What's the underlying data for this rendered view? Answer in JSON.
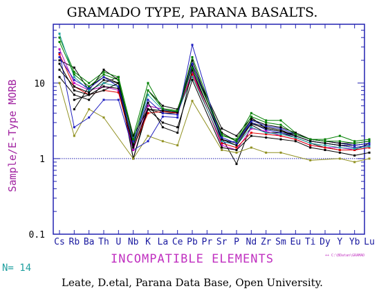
{
  "chart_data": {
    "type": "line",
    "title": "GRAMADO TYPE, PARANA BASALTS.",
    "ylabel": "Sample/E-Type MORB",
    "xlabel": "INCOMPATIBLE ELEMENTS",
    "yscale": "log",
    "ylim": [
      0.1,
      60
    ],
    "yticks": [
      "10",
      "1",
      "0.1"
    ],
    "reference_line": 1,
    "categories": [
      "Cs",
      "Rb",
      "Ba",
      "Th",
      "U",
      "Nb",
      "K",
      "La",
      "Ce",
      "Pb",
      "Pr",
      "Sr",
      "P",
      "Nd",
      "Zr",
      "Sm",
      "Eu",
      "Ti",
      "Dy",
      "Y",
      "Yb",
      "Lu"
    ],
    "series": [
      {
        "color": "#000000",
        "values": [
          20,
          16,
          8,
          15,
          11,
          1.5,
          8,
          5,
          4.5,
          17,
          null,
          2.5,
          2.0,
          3.5,
          2.5,
          2.3,
          2.1,
          1.8,
          1.7,
          1.6,
          1.5,
          1.6
        ]
      },
      {
        "color": "#000000",
        "values": [
          12,
          7,
          6,
          10,
          12,
          1.0,
          4.5,
          4.0,
          4.0,
          20,
          null,
          1.8,
          1.6,
          3.0,
          2.6,
          2.4,
          2.0,
          1.7,
          1.6,
          1.5,
          1.4,
          1.5
        ]
      },
      {
        "color": "#000000",
        "values": [
          null,
          4.5,
          9,
          12,
          10,
          1.0,
          5,
          4.5,
          4.0,
          14,
          null,
          1.9,
          0.85,
          2.8,
          2.2,
          2.2,
          1.9,
          1.6,
          1.4,
          1.3,
          1.3,
          1.6
        ]
      },
      {
        "color": "#008000",
        "values": [
          40,
          14,
          10,
          14,
          12,
          2.0,
          10,
          4.5,
          4.2,
          22,
          null,
          2.0,
          1.8,
          4.0,
          3.2,
          3.2,
          2.2,
          1.8,
          1.8,
          2.0,
          1.7,
          1.8
        ]
      },
      {
        "color": "#909020",
        "values": [
          10,
          2.0,
          4.5,
          3.5,
          null,
          1.0,
          2.0,
          1.7,
          1.5,
          5.8,
          null,
          1.3,
          1.2,
          1.4,
          1.2,
          1.2,
          null,
          0.95,
          null,
          1.0,
          0.9,
          1.0
        ]
      },
      {
        "color": "#2020c0",
        "values": [
          25,
          2.6,
          3.5,
          6,
          6,
          1.3,
          1.7,
          3.6,
          3.5,
          32,
          null,
          1.6,
          1.7,
          3.0,
          2.4,
          2.2,
          2.0,
          1.7,
          1.6,
          1.5,
          1.4,
          1.5
        ]
      },
      {
        "color": "#c000c0",
        "values": [
          28,
          10,
          8,
          9,
          8,
          1.3,
          5,
          4.5,
          4.0,
          14,
          null,
          1.5,
          1.3,
          2.5,
          2.3,
          2.0,
          1.8,
          1.5,
          1.4,
          1.4,
          1.3,
          1.4
        ]
      },
      {
        "color": "#e00000",
        "values": [
          24,
          9,
          7,
          8,
          7.5,
          1.4,
          4,
          4.2,
          4.0,
          13,
          null,
          1.6,
          1.4,
          2.2,
          2.1,
          2.0,
          1.8,
          1.5,
          1.4,
          1.3,
          1.3,
          1.4
        ]
      },
      {
        "color": "#20a0a0",
        "values": [
          45,
          12,
          8,
          10,
          9,
          1.6,
          7,
          4.4,
          4.1,
          12,
          null,
          1.7,
          1.5,
          2.6,
          2.2,
          2.1,
          1.9,
          1.6,
          1.5,
          1.4,
          1.35,
          1.45
        ]
      },
      {
        "color": "#000000",
        "values": [
          18,
          8,
          7,
          9,
          8.5,
          1.4,
          4.5,
          3.0,
          2.6,
          11,
          null,
          1.4,
          1.3,
          2.0,
          1.9,
          1.8,
          1.7,
          1.4,
          1.3,
          1.2,
          1.1,
          1.2
        ]
      },
      {
        "color": "#000000",
        "values": [
          15,
          9,
          7.5,
          11,
          10,
          1.5,
          5.5,
          2.6,
          2.2,
          15,
          null,
          1.8,
          1.5,
          2.9,
          2.5,
          2.3,
          2.0,
          1.7,
          1.6,
          1.5,
          1.5,
          1.6
        ]
      },
      {
        "color": "#2020c0",
        "values": [
          22,
          11,
          8.5,
          12,
          9,
          1.7,
          6,
          4.0,
          3.8,
          18,
          null,
          1.9,
          1.6,
          3.2,
          2.7,
          2.5,
          2.1,
          1.8,
          1.7,
          1.6,
          1.5,
          1.6
        ]
      },
      {
        "color": "#000000",
        "values": [
          null,
          6,
          7,
          8,
          10,
          2.0,
          4.5,
          4.3,
          4.1,
          16,
          null,
          2.2,
          1.7,
          3.3,
          2.8,
          2.6,
          2.2,
          1.8,
          1.7,
          1.6,
          1.6,
          1.7
        ]
      },
      {
        "color": "#008000",
        "values": [
          35,
          13,
          9,
          13,
          11,
          1.8,
          8,
          4.6,
          4.3,
          16,
          null,
          2.1,
          1.7,
          3.6,
          3.0,
          2.8,
          2.1,
          1.8,
          1.7,
          1.7,
          1.6,
          1.7
        ]
      }
    ]
  },
  "n_label": "N=",
  "n_count": "14",
  "credit": "Leate, D.etal, Parana Data Base, Open University.",
  "file_ref": "++ C:\\BDatan\\GRAMAD"
}
